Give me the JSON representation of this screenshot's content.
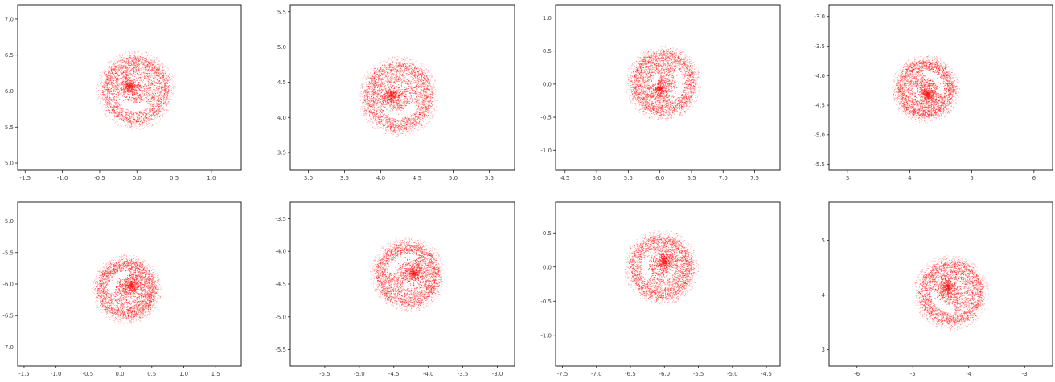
{
  "colors": {
    "points": "#ff1a1a",
    "frame": "#222222",
    "background": "#ffffff"
  },
  "chart_data": [
    {
      "type": "scatter",
      "title": "",
      "xlabel": "",
      "ylabel": "",
      "xlim": [
        -1.6,
        1.4
      ],
      "ylim": [
        4.9,
        7.2
      ],
      "xticks": [
        -1.5,
        -1.0,
        -0.5,
        0.0,
        0.5,
        1.0
      ],
      "xtick_labels": [
        "-1.5",
        "-1.0",
        "-0.5",
        "0.0",
        "0.5",
        "1.0"
      ],
      "yticks": [
        5.0,
        5.5,
        6.0,
        6.5,
        7.0
      ],
      "ytick_labels": [
        "5.0",
        "5.5",
        "6.0",
        "6.5",
        "7.0"
      ],
      "cluster": {
        "cx": -0.02,
        "cy": 6.02,
        "r": 0.48,
        "rot": 30
      }
    },
    {
      "type": "scatter",
      "title": "",
      "xlabel": "",
      "ylabel": "",
      "xlim": [
        2.75,
        5.85
      ],
      "ylim": [
        3.25,
        5.6
      ],
      "xticks": [
        3.0,
        3.5,
        4.0,
        4.5,
        5.0,
        5.5
      ],
      "xtick_labels": [
        "3.0",
        "3.5",
        "4.0",
        "4.5",
        "5.0",
        "5.5"
      ],
      "yticks": [
        3.5,
        4.0,
        4.5,
        5.0,
        5.5
      ],
      "ytick_labels": [
        "3.5",
        "4.0",
        "4.5",
        "5.0",
        "5.5"
      ],
      "cluster": {
        "cx": 4.24,
        "cy": 4.3,
        "r": 0.5,
        "rot": 10
      }
    },
    {
      "type": "scatter",
      "title": "",
      "xlabel": "",
      "ylabel": "",
      "xlim": [
        4.35,
        7.9
      ],
      "ylim": [
        -1.3,
        1.2
      ],
      "xticks": [
        4.5,
        5.0,
        5.5,
        6.0,
        6.5,
        7.0,
        7.5
      ],
      "xtick_labels": [
        "4.5",
        "5.0",
        "5.5",
        "6.0",
        "6.5",
        "7.0",
        "7.5"
      ],
      "yticks": [
        -1.0,
        -0.5,
        0.0,
        0.5,
        1.0
      ],
      "ytick_labels": [
        "-1.0",
        "-0.5",
        "0.0",
        "0.5",
        "1.0"
      ],
      "cluster": {
        "cx": 6.05,
        "cy": 0.02,
        "r": 0.52,
        "rot": -60
      }
    },
    {
      "type": "scatter",
      "title": "",
      "xlabel": "",
      "ylabel": "",
      "xlim": [
        2.7,
        6.3
      ],
      "ylim": [
        -5.6,
        -2.8
      ],
      "xticks": [
        3,
        4,
        5,
        6
      ],
      "xtick_labels": [
        "3",
        "4",
        "5",
        "6"
      ],
      "yticks": [
        -5.5,
        -5.0,
        -4.5,
        -4.0,
        -3.5,
        -3.0
      ],
      "ytick_labels": [
        "-5.5",
        "-5.0",
        "-4.5",
        "-4.0",
        "-3.5",
        "-3.0"
      ],
      "cluster": {
        "cx": 4.25,
        "cy": -4.22,
        "r": 0.5,
        "rot": -110
      }
    },
    {
      "type": "scatter",
      "title": "",
      "xlabel": "",
      "ylabel": "",
      "xlim": [
        -1.6,
        1.9
      ],
      "ylim": [
        -7.3,
        -4.7
      ],
      "xticks": [
        -1.5,
        -1.0,
        -0.5,
        0.0,
        0.5,
        1.0,
        1.5
      ],
      "xtick_labels": [
        "-1.5",
        "-1.0",
        "-0.5",
        "0.0",
        "0.5",
        "1.0",
        "1.5"
      ],
      "yticks": [
        -7.0,
        -6.5,
        -6.0,
        -5.5,
        -5.0
      ],
      "ytick_labels": [
        "-7.0",
        "-6.5",
        "-6.0",
        "-5.5",
        "-5.0"
      ],
      "cluster": {
        "cx": 0.1,
        "cy": -6.08,
        "r": 0.48,
        "rot": 150
      }
    },
    {
      "type": "scatter",
      "title": "",
      "xlabel": "",
      "ylabel": "",
      "xlim": [
        -6.0,
        -2.75
      ],
      "ylim": [
        -5.75,
        -3.25
      ],
      "xticks": [
        -5.5,
        -5.0,
        -4.5,
        -4.0,
        -3.5,
        -3.0
      ],
      "xtick_labels": [
        "-5.5",
        "-5.0",
        "-4.5",
        "-4.0",
        "-3.5",
        "-3.0"
      ],
      "yticks": [
        -5.5,
        -5.0,
        -4.5,
        -4.0,
        -3.5
      ],
      "ytick_labels": [
        "-5.5",
        "-5.0",
        "-4.5",
        "-4.0",
        "-3.5"
      ],
      "cluster": {
        "cx": -4.3,
        "cy": -4.35,
        "r": 0.5,
        "rot": 170
      }
    },
    {
      "type": "scatter",
      "title": "",
      "xlabel": "",
      "ylabel": "",
      "xlim": [
        -7.6,
        -4.3
      ],
      "ylim": [
        -1.45,
        0.95
      ],
      "xticks": [
        -7.5,
        -7.0,
        -6.5,
        -6.0,
        -5.5,
        -5.0,
        -4.5
      ],
      "xtick_labels": [
        "-7.5",
        "-7.0",
        "-6.5",
        "-6.0",
        "-5.5",
        "-5.0",
        "-4.5"
      ],
      "yticks": [
        -1.0,
        -0.5,
        0.0,
        0.5
      ],
      "ytick_labels": [
        "-1.0",
        "-0.5",
        "0.0",
        "0.5"
      ],
      "cluster": {
        "cx": -6.05,
        "cy": 0.0,
        "r": 0.48,
        "rot": 120
      }
    },
    {
      "type": "scatter",
      "title": "",
      "xlabel": "",
      "ylabel": "",
      "xlim": [
        -6.5,
        -2.5
      ],
      "ylim": [
        2.7,
        5.7
      ],
      "xticks": [
        -6,
        -5,
        -4,
        -3
      ],
      "xtick_labels": [
        "-6",
        "-5",
        "-4",
        "-3"
      ],
      "yticks": [
        3,
        4,
        5
      ],
      "ytick_labels": [
        "3",
        "4",
        "5"
      ],
      "cluster": {
        "cx": -4.32,
        "cy": 4.05,
        "r": 0.6,
        "rot": 60
      }
    }
  ]
}
